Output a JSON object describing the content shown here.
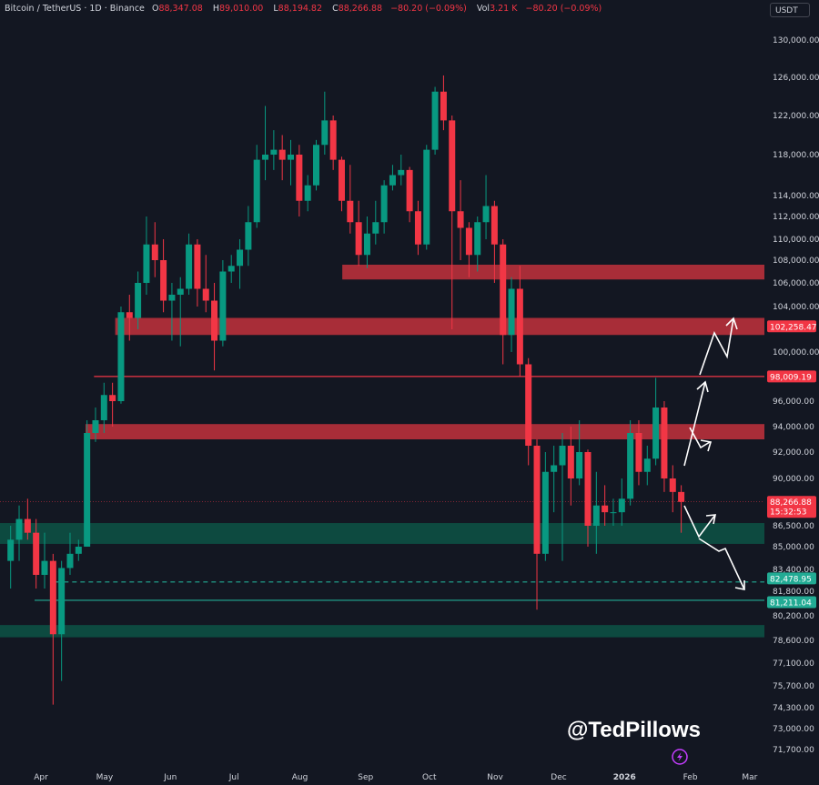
{
  "header": {
    "symbol": "Bitcoin / TetherUS · 1D · Binance",
    "open_label": "O",
    "open": "88,347.08",
    "high_label": "H",
    "high": "89,010.00",
    "low_label": "L",
    "low": "88,194.82",
    "close_label": "C",
    "close": "88,266.88",
    "change": "−80.20 (−0.09%)",
    "vol_label": "Vol",
    "vol": "3.21 K",
    "change2": "−80.20 (−0.09%)"
  },
  "currency_button": "USDT",
  "watermark": "@TedPillows",
  "logo_icon": "lightning-circle-icon",
  "colors": {
    "background": "#131722",
    "up": "#089981",
    "down": "#f23645",
    "red_zone": "#b9303b",
    "green_zone": "#0d4a40",
    "text": "#d1d4dc"
  },
  "chart_data": {
    "type": "candlestick",
    "title": "Bitcoin / TetherUS · 1D · Binance",
    "y_ticks": [
      "130,000.00",
      "126,000.00",
      "122,000.00",
      "118,000.00",
      "114,000.00",
      "112,000.00",
      "110,000.00",
      "108,000.00",
      "106,000.00",
      "104,000.00",
      "100,000.00",
      "96,000.00",
      "94,000.00",
      "92,000.00",
      "90,000.00",
      "86,500.00",
      "85,000.00",
      "83,400.00",
      "81,800.00",
      "80,200.00",
      "78,600.00",
      "77,100.00",
      "75,700.00",
      "74,300.00",
      "73,000.00",
      "71,700.00"
    ],
    "x_ticks": [
      "Apr",
      "May",
      "Jun",
      "Jul",
      "Aug",
      "Sep",
      "Oct",
      "Nov",
      "Dec",
      "2026",
      "Feb",
      "Mar"
    ],
    "ylim": [
      71000,
      131000
    ],
    "grid": false,
    "candles": [
      [
        "2025-03-16",
        84000,
        86500,
        82000,
        85500
      ],
      [
        "2025-03-20",
        85500,
        88000,
        84000,
        87000
      ],
      [
        "2025-03-24",
        87000,
        88500,
        85500,
        86000
      ],
      [
        "2025-03-28",
        86000,
        87000,
        82000,
        83000
      ],
      [
        "2025-04-01",
        83000,
        86000,
        82000,
        84000
      ],
      [
        "2025-04-05",
        84000,
        84500,
        74500,
        79000
      ],
      [
        "2025-04-09",
        79000,
        84000,
        76000,
        83500
      ],
      [
        "2025-04-13",
        83500,
        86000,
        83000,
        84500
      ],
      [
        "2025-04-17",
        84500,
        85500,
        84000,
        85000
      ],
      [
        "2025-04-21",
        85000,
        94500,
        85000,
        93500
      ],
      [
        "2025-04-25",
        93500,
        95500,
        92800,
        94500
      ],
      [
        "2025-04-29",
        94500,
        97500,
        93500,
        96500
      ],
      [
        "2025-05-03",
        96500,
        97500,
        94000,
        96000
      ],
      [
        "2025-05-07",
        96000,
        104000,
        95800,
        103500
      ],
      [
        "2025-05-11",
        103500,
        105000,
        101000,
        103000
      ],
      [
        "2025-05-15",
        103000,
        107000,
        102000,
        106000
      ],
      [
        "2025-05-19",
        106000,
        112000,
        105000,
        109500
      ],
      [
        "2025-05-23",
        109500,
        111500,
        106500,
        108000
      ],
      [
        "2025-05-27",
        108000,
        110000,
        103500,
        104500
      ],
      [
        "2025-05-31",
        104500,
        106000,
        101000,
        105000
      ],
      [
        "2025-06-04",
        105000,
        106500,
        100500,
        105500
      ],
      [
        "2025-06-08",
        105500,
        110500,
        105000,
        109500
      ],
      [
        "2025-06-12",
        109500,
        110000,
        104000,
        105500
      ],
      [
        "2025-06-16",
        105500,
        108500,
        103500,
        104500
      ],
      [
        "2025-06-20",
        104500,
        106000,
        98500,
        101000
      ],
      [
        "2025-06-24",
        101000,
        108000,
        100500,
        107000
      ],
      [
        "2025-06-28",
        107000,
        108500,
        106000,
        107500
      ],
      [
        "2025-07-02",
        107500,
        110000,
        105500,
        109000
      ],
      [
        "2025-07-06",
        109000,
        113000,
        107500,
        111500
      ],
      [
        "2025-07-10",
        111500,
        119000,
        111000,
        117500
      ],
      [
        "2025-07-14",
        117500,
        123000,
        115500,
        118000
      ],
      [
        "2025-07-18",
        118000,
        120500,
        116500,
        118500
      ],
      [
        "2025-07-22",
        118500,
        120000,
        115500,
        117500
      ],
      [
        "2025-07-26",
        117500,
        119500,
        115000,
        118000
      ],
      [
        "2025-07-30",
        118000,
        119000,
        112000,
        113500
      ],
      [
        "2025-08-03",
        113500,
        116000,
        112500,
        115000
      ],
      [
        "2025-08-07",
        115000,
        119500,
        114500,
        119000
      ],
      [
        "2025-08-11",
        119000,
        124500,
        118000,
        121500
      ],
      [
        "2025-08-15",
        121500,
        122000,
        116500,
        117500
      ],
      [
        "2025-08-19",
        117500,
        117800,
        112500,
        113500
      ],
      [
        "2025-08-23",
        113500,
        117000,
        110500,
        111500
      ],
      [
        "2025-08-27",
        111500,
        113500,
        107500,
        108500
      ],
      [
        "2025-08-31",
        108500,
        112000,
        107300,
        110500
      ],
      [
        "2025-09-04",
        110500,
        113500,
        109500,
        111500
      ],
      [
        "2025-09-08",
        111500,
        115500,
        110500,
        115000
      ],
      [
        "2025-09-12",
        115000,
        117000,
        114500,
        116000
      ],
      [
        "2025-09-16",
        116000,
        118000,
        115000,
        116500
      ],
      [
        "2025-09-20",
        116500,
        116800,
        111500,
        112500
      ],
      [
        "2025-09-24",
        112500,
        113500,
        108500,
        109500
      ],
      [
        "2025-09-28",
        109500,
        119000,
        109000,
        118500
      ],
      [
        "2025-10-02",
        118500,
        125000,
        118000,
        124500
      ],
      [
        "2025-10-06",
        124500,
        126200,
        120500,
        121500
      ],
      [
        "2025-10-10",
        121500,
        122000,
        102000,
        112500
      ],
      [
        "2025-10-14",
        112500,
        115500,
        108000,
        111000
      ],
      [
        "2025-10-18",
        111000,
        111500,
        106500,
        108500
      ],
      [
        "2025-10-22",
        108500,
        112000,
        107000,
        111500
      ],
      [
        "2025-10-26",
        111500,
        116000,
        110000,
        113000
      ],
      [
        "2025-10-30",
        113000,
        113500,
        106000,
        109500
      ],
      [
        "2025-11-03",
        109500,
        110000,
        99000,
        101500
      ],
      [
        "2025-11-07",
        101500,
        106500,
        100000,
        105500
      ],
      [
        "2025-11-11",
        105500,
        107500,
        98000,
        99000
      ],
      [
        "2025-11-15",
        99000,
        99500,
        91000,
        92500
      ],
      [
        "2025-11-19",
        92500,
        93000,
        80600,
        84500
      ],
      [
        "2025-11-23",
        84500,
        92000,
        84000,
        90500
      ],
      [
        "2025-11-27",
        90500,
        92500,
        87500,
        91000
      ],
      [
        "2025-12-01",
        91000,
        93500,
        84000,
        92500
      ],
      [
        "2025-12-05",
        92500,
        94000,
        88000,
        90000
      ],
      [
        "2025-12-09",
        90000,
        94500,
        89500,
        92000
      ],
      [
        "2025-12-13",
        92000,
        92200,
        85000,
        86500
      ],
      [
        "2025-12-17",
        86500,
        90500,
        84500,
        88000
      ],
      [
        "2025-12-21",
        88000,
        89500,
        86500,
        87500
      ],
      [
        "2025-12-25",
        87500,
        88500,
        86500,
        87500
      ],
      [
        "2025-12-29",
        87500,
        90000,
        86500,
        88500
      ],
      [
        "2026-01-02",
        88500,
        94500,
        88000,
        93500
      ],
      [
        "2026-01-06",
        93500,
        94500,
        89500,
        90500
      ],
      [
        "2026-01-10",
        90500,
        92500,
        89500,
        91500
      ],
      [
        "2026-01-14",
        91500,
        97900,
        91000,
        95500
      ],
      [
        "2026-01-18",
        95500,
        96000,
        89000,
        90000
      ],
      [
        "2026-01-22",
        90000,
        91000,
        87500,
        89000
      ],
      [
        "2026-01-26",
        89000,
        89500,
        86000,
        88266.88
      ]
    ],
    "zones": [
      {
        "kind": "resistance",
        "from": 106300,
        "to": 107600,
        "start": "2025-08-21"
      },
      {
        "kind": "resistance",
        "from": 101500,
        "to": 103000,
        "start": "2025-05-06"
      },
      {
        "kind": "resistance",
        "from": 93000,
        "to": 94200,
        "start": "2025-04-22"
      },
      {
        "kind": "support",
        "from": 85200,
        "to": 86700,
        "start": "2025-03-12"
      },
      {
        "kind": "support",
        "from": 78800,
        "to": 79600,
        "start": "2025-03-12"
      }
    ],
    "levels": [
      {
        "price": 102258.47,
        "label": "102,258.47",
        "color": "#f23645",
        "style": "none"
      },
      {
        "price": 98009.19,
        "label": "98,009.19",
        "color": "#f23645",
        "style": "solid",
        "start": "2025-04-26"
      },
      {
        "price": 88266.88,
        "label": "88,266.88",
        "sub": "15:32:53",
        "color": "#f23645",
        "style": "dotted",
        "start": "2025-03-12"
      },
      {
        "price": 82478.95,
        "label": "82,478.95",
        "color": "#22ab94",
        "style": "dashed",
        "start": "2025-04-08"
      },
      {
        "price": 81211.04,
        "label": "81,211.04",
        "color": "#22ab94",
        "style": "solid",
        "start": "2025-03-29"
      }
    ]
  }
}
